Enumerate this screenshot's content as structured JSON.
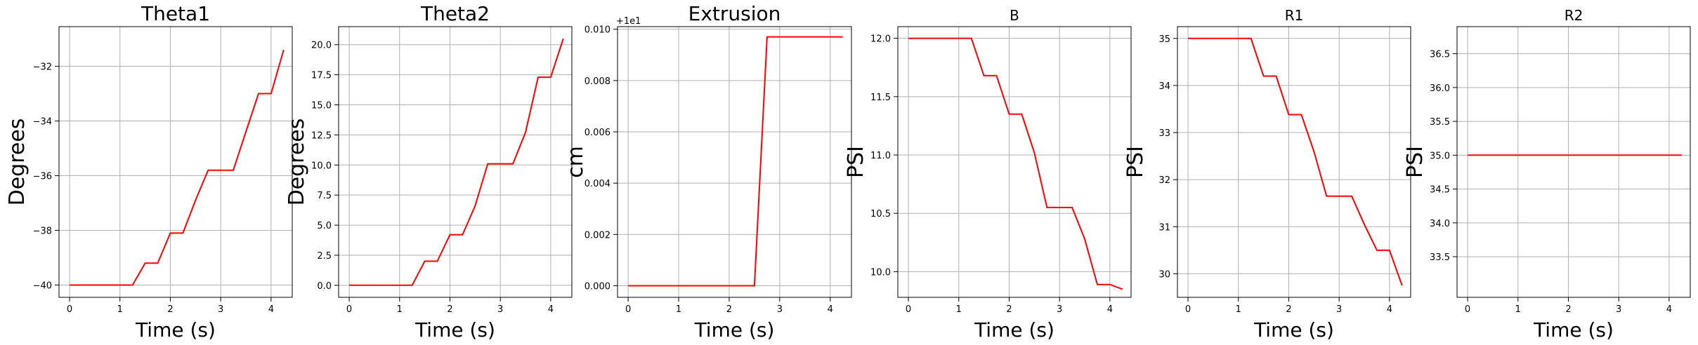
{
  "chart_data": [
    {
      "type": "line",
      "title": "Theta1",
      "xlabel": "Time (s)",
      "ylabel": "Degrees",
      "offset_text": "",
      "grid": true,
      "color": "#ff0000",
      "xlim": [
        -0.21,
        4.42
      ],
      "ylim": [
        -40.45,
        -30.55
      ],
      "xticks": [
        0,
        1,
        2,
        3,
        4
      ],
      "xtick_labels": [
        "0",
        "1",
        "2",
        "3",
        "4"
      ],
      "yticks": [
        -40,
        -38,
        -36,
        -34,
        -32
      ],
      "ytick_labels": [
        "−40",
        "−38",
        "−36",
        "−34",
        "−32"
      ],
      "x": [
        0,
        0.25,
        0.5,
        0.75,
        1.0,
        1.25,
        1.5,
        1.75,
        2.0,
        2.25,
        2.5,
        2.75,
        3.0,
        3.25,
        3.5,
        3.75,
        4.0,
        4.25
      ],
      "y": [
        -40,
        -40,
        -40,
        -40,
        -40,
        -40,
        -39.2,
        -39.2,
        -38.1,
        -38.1,
        -36.9,
        -35.8,
        -35.8,
        -35.8,
        -34.4,
        -33.0,
        -33.0,
        -31.4
      ]
    },
    {
      "type": "line",
      "title": "Theta2",
      "xlabel": "Time (s)",
      "ylabel": "Degrees",
      "offset_text": "",
      "grid": true,
      "color": "#ff0000",
      "xlim": [
        -0.21,
        4.42
      ],
      "ylim": [
        -1.0,
        21.5
      ],
      "xticks": [
        0,
        1,
        2,
        3,
        4
      ],
      "xtick_labels": [
        "0",
        "1",
        "2",
        "3",
        "4"
      ],
      "yticks": [
        0,
        2.5,
        5,
        7.5,
        10,
        12.5,
        15,
        17.5,
        20
      ],
      "ytick_labels": [
        "0.0",
        "2.5",
        "5.0",
        "7.5",
        "10.0",
        "12.5",
        "15.0",
        "17.5",
        "20.0"
      ],
      "x": [
        0,
        0.25,
        0.5,
        0.75,
        1.0,
        1.25,
        1.5,
        1.75,
        2.0,
        2.25,
        2.5,
        2.75,
        3.0,
        3.25,
        3.5,
        3.75,
        4.0,
        4.25
      ],
      "y": [
        0,
        0,
        0,
        0,
        0,
        0,
        2.0,
        2.0,
        4.2,
        4.2,
        6.6,
        10.1,
        10.1,
        10.1,
        12.7,
        17.3,
        17.3,
        20.5
      ]
    },
    {
      "type": "line",
      "title": "Extrusion",
      "xlabel": "Time (s)",
      "ylabel": "cm",
      "offset_text": "+1e1",
      "grid": true,
      "color": "#ff0000",
      "xlim": [
        -0.21,
        4.42
      ],
      "ylim": [
        -0.00045,
        0.0101
      ],
      "xticks": [
        0,
        1,
        2,
        3,
        4
      ],
      "xtick_labels": [
        "0",
        "1",
        "2",
        "3",
        "4"
      ],
      "yticks": [
        0,
        0.002,
        0.004,
        0.006,
        0.008,
        0.01
      ],
      "ytick_labels": [
        "0.000",
        "0.002",
        "0.004",
        "0.006",
        "0.008",
        "0.010"
      ],
      "x": [
        0,
        0.25,
        0.5,
        0.75,
        1.0,
        1.25,
        1.5,
        1.75,
        2.0,
        2.25,
        2.5,
        2.75,
        3.0,
        3.25,
        3.5,
        3.75,
        4.0,
        4.25
      ],
      "y": [
        0,
        0,
        0,
        0,
        0,
        0,
        0,
        0,
        0,
        0,
        0,
        0.0097,
        0.0097,
        0.0097,
        0.0097,
        0.0097,
        0.0097,
        0.0097
      ]
    },
    {
      "type": "line",
      "title": "B",
      "xlabel": "Time (s)",
      "ylabel": "PSI",
      "offset_text": "",
      "grid": true,
      "color": "#ff0000",
      "xlim": [
        -0.21,
        4.42
      ],
      "ylim": [
        9.78,
        12.1
      ],
      "xticks": [
        0,
        1,
        2,
        3,
        4
      ],
      "xtick_labels": [
        "0",
        "1",
        "2",
        "3",
        "4"
      ],
      "yticks": [
        10.0,
        10.5,
        11.0,
        11.5,
        12.0
      ],
      "ytick_labels": [
        "10.0",
        "10.5",
        "11.0",
        "11.5",
        "12.0"
      ],
      "x": [
        0,
        0.25,
        0.5,
        0.75,
        1.0,
        1.25,
        1.5,
        1.75,
        2.0,
        2.25,
        2.5,
        2.75,
        3.0,
        3.25,
        3.5,
        3.75,
        4.0,
        4.25
      ],
      "y": [
        12.0,
        12.0,
        12.0,
        12.0,
        12.0,
        12.0,
        11.68,
        11.68,
        11.35,
        11.35,
        11.02,
        10.55,
        10.55,
        10.55,
        10.28,
        9.89,
        9.89,
        9.85
      ]
    },
    {
      "type": "line",
      "title": "R1",
      "xlabel": "Time (s)",
      "ylabel": "PSI",
      "offset_text": "",
      "grid": true,
      "color": "#ff0000",
      "xlim": [
        -0.21,
        4.42
      ],
      "ylim": [
        29.5,
        35.25
      ],
      "xticks": [
        0,
        1,
        2,
        3,
        4
      ],
      "xtick_labels": [
        "0",
        "1",
        "2",
        "3",
        "4"
      ],
      "yticks": [
        30,
        31,
        32,
        33,
        34,
        35
      ],
      "ytick_labels": [
        "30",
        "31",
        "32",
        "33",
        "34",
        "35"
      ],
      "x": [
        0,
        0.25,
        0.5,
        0.75,
        1.0,
        1.25,
        1.5,
        1.75,
        2.0,
        2.25,
        2.5,
        2.75,
        3.0,
        3.25,
        3.5,
        3.75,
        4.0,
        4.25
      ],
      "y": [
        35,
        35,
        35,
        35,
        35,
        35,
        34.2,
        34.2,
        33.38,
        33.38,
        32.6,
        31.65,
        31.65,
        31.65,
        31.05,
        30.5,
        30.5,
        29.75
      ]
    },
    {
      "type": "line",
      "title": "R2",
      "xlabel": "Time (s)",
      "ylabel": "PSI",
      "offset_text": "",
      "grid": true,
      "color": "#ff0000",
      "xlim": [
        -0.21,
        4.42
      ],
      "ylim": [
        32.9,
        36.9
      ],
      "xticks": [
        0,
        1,
        2,
        3,
        4
      ],
      "xtick_labels": [
        "0",
        "1",
        "2",
        "3",
        "4"
      ],
      "yticks": [
        33.5,
        34.0,
        34.5,
        35.0,
        35.5,
        36.0,
        36.5
      ],
      "ytick_labels": [
        "33.5",
        "34.0",
        "34.5",
        "35.0",
        "35.5",
        "36.0",
        "36.5"
      ],
      "x": [
        0,
        0.25,
        0.5,
        0.75,
        1.0,
        1.25,
        1.5,
        1.75,
        2.0,
        2.25,
        2.5,
        2.75,
        3.0,
        3.25,
        3.5,
        3.75,
        4.0,
        4.25
      ],
      "y": [
        35,
        35,
        35,
        35,
        35,
        35,
        35,
        35,
        35,
        35,
        35,
        35,
        35,
        35,
        35,
        35,
        35,
        35
      ]
    }
  ]
}
